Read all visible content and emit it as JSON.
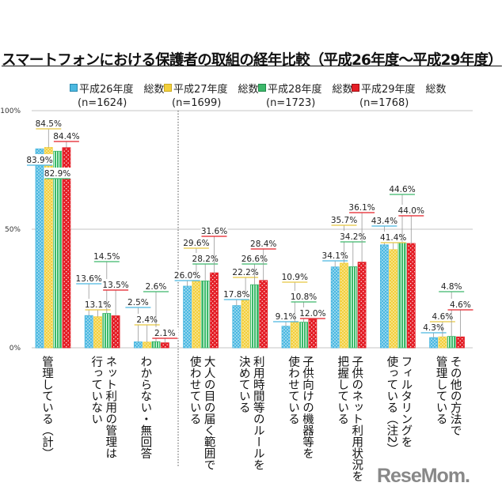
{
  "chart_data": {
    "type": "bar",
    "title": "スマートフォンにおける保護者の取組の経年比較（平成26年度～平成29年度）",
    "ylim": [
      0,
      100
    ],
    "yticks": [
      "0%",
      "50%",
      "100%"
    ],
    "grid": true,
    "legend_position": "top",
    "categories": [
      "管理している（計）",
      "ネット利用の管理は\n行っていない",
      "わからない・無回答",
      "大人の目の届く範囲で\n使わせている",
      "利用時間等のルールを\n決めている",
      "子供向けの機器等を\n使わせている",
      "子供のネット利用状況を\n把握している",
      "フィルタリングを\n使っている（注2）",
      "その他の方法で\n管理している"
    ],
    "series": [
      {
        "name": "平成26年度　総数",
        "n": "(n=1624)",
        "color": "#4bb8e0",
        "values": [
          83.9,
          13.6,
          2.5,
          26.0,
          17.8,
          9.1,
          34.1,
          43.4,
          4.3
        ]
      },
      {
        "name": "平成27年度　総数",
        "n": "(n=1699)",
        "color": "#f2cf3c",
        "values": [
          84.5,
          13.1,
          2.4,
          29.6,
          22.2,
          10.9,
          35.7,
          41.4,
          4.6
        ]
      },
      {
        "name": "平成28年度　総数",
        "n": "(n=1723)",
        "color": "#3cb86a",
        "values": [
          82.9,
          14.5,
          2.6,
          28.2,
          26.6,
          10.8,
          34.2,
          44.6,
          4.8
        ]
      },
      {
        "name": "平成29年度　総数",
        "n": "(n=1768)",
        "color": "#e41e26",
        "values": [
          84.4,
          13.5,
          2.1,
          31.6,
          28.4,
          12.0,
          36.1,
          44.0,
          4.6
        ]
      }
    ]
  },
  "logo": "ReseMom."
}
